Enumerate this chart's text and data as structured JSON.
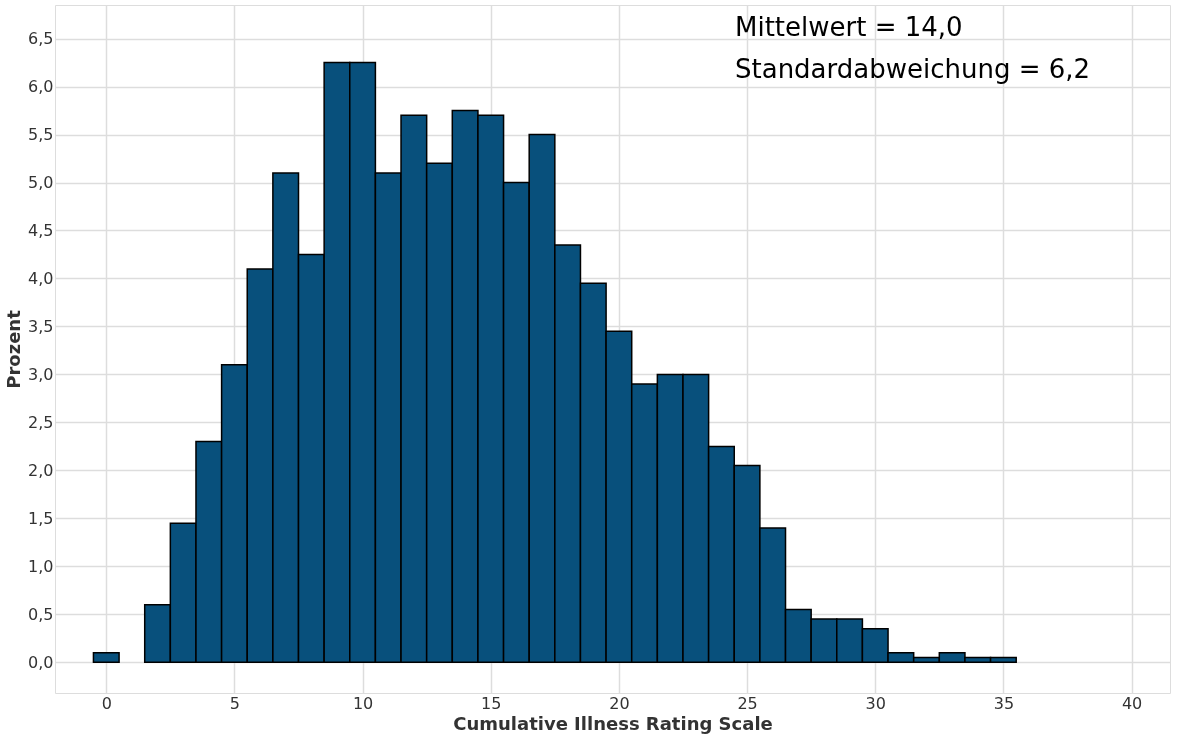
{
  "chart_data": {
    "type": "histogram",
    "xlabel": "Cumulative Illness Rating Scale",
    "ylabel": "Prozent",
    "bins": [
      -0.5,
      0.5,
      1.5,
      2.5,
      3.5,
      4.5,
      5.5,
      6.5,
      7.5,
      8.5,
      9.5,
      10.5,
      11.5,
      12.5,
      13.5,
      14.5,
      15.5,
      16.5,
      17.5,
      18.5,
      19.5,
      20.5,
      21.5,
      22.5,
      23.5,
      24.5,
      25.5,
      26.5,
      27.5,
      28.5,
      29.5,
      30.5,
      31.5,
      32.5,
      33.5,
      34.5,
      35.5
    ],
    "values": [
      0.1,
      0,
      0.6,
      1.45,
      2.3,
      3.1,
      4.1,
      5.1,
      4.25,
      6.25,
      6.25,
      5.1,
      5.7,
      5.2,
      5.75,
      5.7,
      5.0,
      5.5,
      4.35,
      3.95,
      3.45,
      2.9,
      3.0,
      3.0,
      2.25,
      2.05,
      1.4,
      0.55,
      0.45,
      0.45,
      0.35,
      0.1,
      0.05,
      0.1,
      0.05,
      0.05
    ],
    "color": "#08507c",
    "xlim": [
      -2,
      41.5
    ],
    "xticks": [
      0,
      5,
      10,
      15,
      20,
      25,
      30,
      35,
      40
    ],
    "ylim": [
      -0.32,
      6.85
    ],
    "yticks": [
      {
        "value": 0,
        "label": "0,0"
      },
      {
        "value": 0.5,
        "label": "0,5"
      },
      {
        "value": 1,
        "label": "1,0"
      },
      {
        "value": 1.5,
        "label": "1,5"
      },
      {
        "value": 2,
        "label": "2,0"
      },
      {
        "value": 2.5,
        "label": "2,5"
      },
      {
        "value": 3,
        "label": "3,0"
      },
      {
        "value": 3.5,
        "label": "3,5"
      },
      {
        "value": 4,
        "label": "4,0"
      },
      {
        "value": 4.5,
        "label": "4,5"
      },
      {
        "value": 5,
        "label": "5,0"
      },
      {
        "value": 5.5,
        "label": "5,5"
      },
      {
        "value": 6,
        "label": "6,0"
      },
      {
        "value": 6.5,
        "label": "6,5"
      }
    ],
    "grid": true,
    "annotations": [
      "Mittelwert = 14,0",
      "Standardabweichung = 6,2"
    ]
  }
}
